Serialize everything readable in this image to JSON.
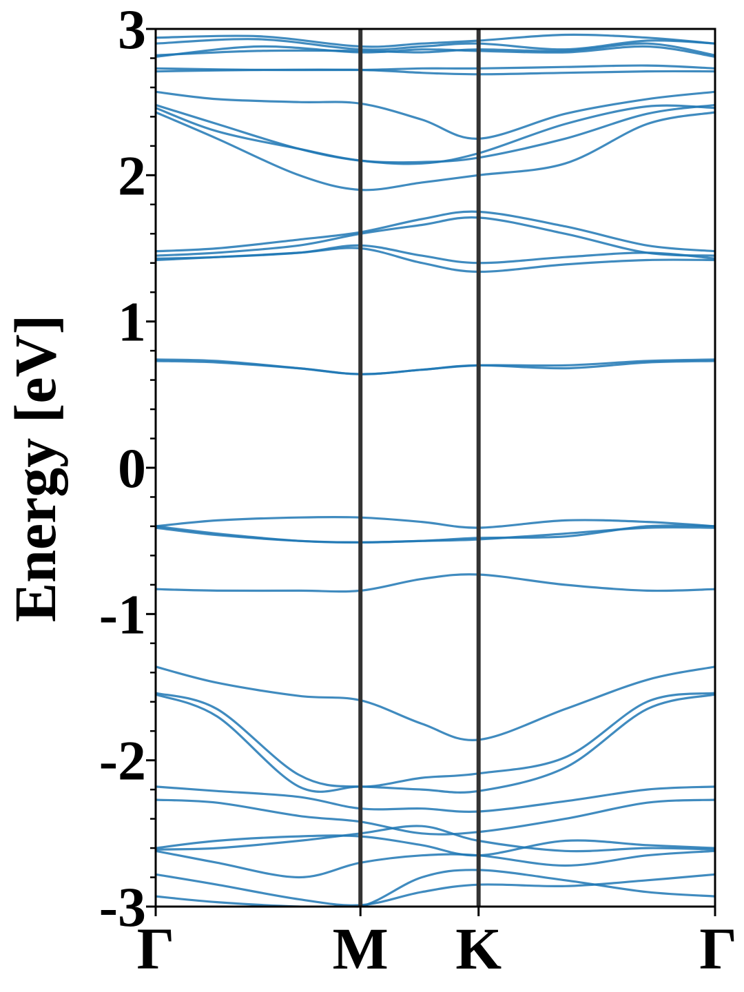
{
  "chart_data": {
    "type": "line",
    "ylabel": "Energy [eV]",
    "ylim": [
      -3,
      3
    ],
    "y_ticks": [
      "-3",
      "-2",
      "-1",
      "0",
      "1",
      "2",
      "3"
    ],
    "y_tick_values": [
      -3,
      -2,
      -1,
      0,
      1,
      2,
      3
    ],
    "k_points": [
      {
        "label": "Γ",
        "position": 0.0
      },
      {
        "label": "M",
        "position": 1.0
      },
      {
        "label": "K",
        "position": 1.577
      },
      {
        "label": "Γ",
        "position": 2.732
      }
    ],
    "grid": false,
    "colors": {
      "bands": "#1f77b4",
      "kpath_lines": "#333333",
      "axes": "#000000"
    },
    "bands": [
      {
        "x": [
          0,
          0.5,
          1.0,
          1.3,
          1.577,
          2.0,
          2.4,
          2.732
        ],
        "y": [
          2.94,
          2.95,
          2.88,
          2.9,
          2.92,
          2.96,
          2.94,
          2.9
        ]
      },
      {
        "x": [
          0,
          0.5,
          1.0,
          1.3,
          1.577,
          2.0,
          2.4,
          2.732
        ],
        "y": [
          2.9,
          2.93,
          2.86,
          2.88,
          2.9,
          2.86,
          2.92,
          2.9
        ]
      },
      {
        "x": [
          0,
          0.5,
          1.0,
          1.3,
          1.577,
          2.0,
          2.4,
          2.732
        ],
        "y": [
          2.82,
          2.85,
          2.85,
          2.84,
          2.86,
          2.85,
          2.9,
          2.82
        ]
      },
      {
        "x": [
          0,
          0.5,
          1.0,
          1.3,
          1.577,
          2.0,
          2.4,
          2.732
        ],
        "y": [
          2.81,
          2.88,
          2.84,
          2.86,
          2.85,
          2.84,
          2.88,
          2.81
        ]
      },
      {
        "x": [
          0,
          0.5,
          1.0,
          1.3,
          1.577,
          2.0,
          2.4,
          2.732
        ],
        "y": [
          2.73,
          2.72,
          2.72,
          2.73,
          2.73,
          2.74,
          2.75,
          2.73
        ]
      },
      {
        "x": [
          0,
          0.5,
          1.0,
          1.3,
          1.577,
          2.0,
          2.4,
          2.732
        ],
        "y": [
          2.71,
          2.72,
          2.72,
          2.7,
          2.69,
          2.7,
          2.71,
          2.71
        ]
      },
      {
        "x": [
          0,
          0.3,
          0.7,
          1.0,
          1.3,
          1.577,
          2.0,
          2.4,
          2.732
        ],
        "y": [
          2.57,
          2.52,
          2.5,
          2.49,
          2.38,
          2.25,
          2.42,
          2.52,
          2.57
        ]
      },
      {
        "x": [
          0,
          0.3,
          0.7,
          1.0,
          1.3,
          1.577,
          2.0,
          2.4,
          2.732
        ],
        "y": [
          2.48,
          2.35,
          2.18,
          2.1,
          2.09,
          2.12,
          2.25,
          2.42,
          2.48
        ]
      },
      {
        "x": [
          0,
          0.3,
          0.7,
          1.0,
          1.3,
          1.577,
          2.0,
          2.4,
          2.732
        ],
        "y": [
          2.46,
          2.3,
          2.18,
          2.1,
          2.08,
          2.15,
          2.35,
          2.47,
          2.46
        ]
      },
      {
        "x": [
          0,
          0.3,
          0.7,
          1.0,
          1.3,
          1.577,
          2.0,
          2.4,
          2.732
        ],
        "y": [
          2.43,
          2.25,
          2.0,
          1.9,
          1.95,
          2.0,
          2.08,
          2.35,
          2.43
        ]
      },
      {
        "x": [
          0,
          0.3,
          0.7,
          1.0,
          1.3,
          1.577,
          2.0,
          2.4,
          2.732
        ],
        "y": [
          1.48,
          1.5,
          1.56,
          1.61,
          1.7,
          1.75,
          1.65,
          1.52,
          1.48
        ]
      },
      {
        "x": [
          0,
          0.3,
          0.7,
          1.0,
          1.3,
          1.577,
          2.0,
          2.4,
          2.732
        ],
        "y": [
          1.45,
          1.47,
          1.52,
          1.6,
          1.66,
          1.71,
          1.6,
          1.47,
          1.45
        ]
      },
      {
        "x": [
          0,
          0.3,
          0.7,
          1.0,
          1.3,
          1.577,
          2.0,
          2.4,
          2.732
        ],
        "y": [
          1.43,
          1.44,
          1.47,
          1.52,
          1.45,
          1.4,
          1.44,
          1.47,
          1.43
        ]
      },
      {
        "x": [
          0,
          0.3,
          0.7,
          1.0,
          1.3,
          1.577,
          2.0,
          2.4,
          2.732
        ],
        "y": [
          1.42,
          1.44,
          1.47,
          1.5,
          1.4,
          1.34,
          1.39,
          1.42,
          1.42
        ]
      },
      {
        "x": [
          0,
          0.3,
          0.7,
          1.0,
          1.3,
          1.577,
          2.0,
          2.4,
          2.732
        ],
        "y": [
          0.74,
          0.73,
          0.68,
          0.64,
          0.67,
          0.7,
          0.7,
          0.73,
          0.74
        ]
      },
      {
        "x": [
          0,
          0.3,
          0.7,
          1.0,
          1.3,
          1.577,
          2.0,
          2.4,
          2.732
        ],
        "y": [
          0.73,
          0.72,
          0.68,
          0.64,
          0.67,
          0.7,
          0.68,
          0.72,
          0.73
        ]
      },
      {
        "x": [
          0,
          0.3,
          0.7,
          1.0,
          1.3,
          1.577,
          2.0,
          2.4,
          2.732
        ],
        "y": [
          -0.4,
          -0.36,
          -0.34,
          -0.34,
          -0.37,
          -0.41,
          -0.36,
          -0.37,
          -0.4
        ]
      },
      {
        "x": [
          0,
          0.3,
          0.7,
          1.0,
          1.3,
          1.577,
          2.0,
          2.4,
          2.732
        ],
        "y": [
          -0.4,
          -0.45,
          -0.5,
          -0.51,
          -0.5,
          -0.48,
          -0.47,
          -0.4,
          -0.4
        ]
      },
      {
        "x": [
          0,
          0.3,
          0.7,
          1.0,
          1.3,
          1.577,
          2.0,
          2.4,
          2.732
        ],
        "y": [
          -0.41,
          -0.46,
          -0.5,
          -0.51,
          -0.5,
          -0.49,
          -0.45,
          -0.41,
          -0.41
        ]
      },
      {
        "x": [
          0,
          0.3,
          0.7,
          1.0,
          1.3,
          1.577,
          2.0,
          2.4,
          2.732
        ],
        "y": [
          -0.83,
          -0.84,
          -0.84,
          -0.84,
          -0.76,
          -0.73,
          -0.8,
          -0.84,
          -0.83
        ]
      },
      {
        "x": [
          0,
          0.3,
          0.7,
          1.0,
          1.3,
          1.577,
          2.0,
          2.4,
          2.732
        ],
        "y": [
          -1.36,
          -1.47,
          -1.56,
          -1.59,
          -1.75,
          -1.86,
          -1.65,
          -1.45,
          -1.36
        ]
      },
      {
        "x": [
          0,
          0.3,
          0.7,
          1.0,
          1.3,
          1.577,
          2.0,
          2.4,
          2.732
        ],
        "y": [
          -1.54,
          -1.65,
          -2.1,
          -2.18,
          -2.12,
          -2.09,
          -1.98,
          -1.6,
          -1.54
        ]
      },
      {
        "x": [
          0,
          0.3,
          0.7,
          1.0,
          1.3,
          1.577,
          2.0,
          2.4,
          2.732
        ],
        "y": [
          -1.55,
          -1.7,
          -2.18,
          -2.18,
          -2.2,
          -2.21,
          -2.05,
          -1.65,
          -1.55
        ]
      },
      {
        "x": [
          0,
          0.3,
          0.7,
          1.0,
          1.3,
          1.577,
          2.0,
          2.4,
          2.732
        ],
        "y": [
          -2.18,
          -2.21,
          -2.25,
          -2.33,
          -2.33,
          -2.35,
          -2.28,
          -2.2,
          -2.18
        ]
      },
      {
        "x": [
          0,
          0.3,
          0.7,
          1.0,
          1.3,
          1.577,
          2.0,
          2.4,
          2.732
        ],
        "y": [
          -2.27,
          -2.29,
          -2.38,
          -2.42,
          -2.5,
          -2.49,
          -2.4,
          -2.29,
          -2.27
        ]
      },
      {
        "x": [
          0,
          0.3,
          0.7,
          1.0,
          1.3,
          1.577,
          2.0,
          2.4,
          2.732
        ],
        "y": [
          -2.6,
          -2.55,
          -2.52,
          -2.52,
          -2.58,
          -2.65,
          -2.55,
          -2.58,
          -2.6
        ]
      },
      {
        "x": [
          0,
          0.3,
          0.7,
          1.0,
          1.3,
          1.577,
          2.0,
          2.4,
          2.732
        ],
        "y": [
          -2.61,
          -2.6,
          -2.55,
          -2.5,
          -2.45,
          -2.55,
          -2.62,
          -2.6,
          -2.61
        ]
      },
      {
        "x": [
          0,
          0.3,
          0.7,
          1.0,
          1.3,
          1.577,
          2.0,
          2.4,
          2.732
        ],
        "y": [
          -2.62,
          -2.7,
          -2.8,
          -2.7,
          -2.65,
          -2.65,
          -2.72,
          -2.65,
          -2.62
        ]
      },
      {
        "x": [
          0,
          0.3,
          0.7,
          1.0,
          1.3,
          1.577,
          2.0,
          2.4,
          2.732
        ],
        "y": [
          -2.78,
          -2.85,
          -2.95,
          -2.99,
          -2.9,
          -2.85,
          -2.86,
          -2.82,
          -2.78
        ]
      },
      {
        "x": [
          0,
          0.3,
          0.7,
          1.0,
          1.3,
          1.577,
          2.0,
          2.4,
          2.732
        ],
        "y": [
          -2.93,
          -2.97,
          -3.0,
          -3.0,
          -2.8,
          -2.75,
          -2.82,
          -2.9,
          -2.93
        ]
      }
    ]
  }
}
